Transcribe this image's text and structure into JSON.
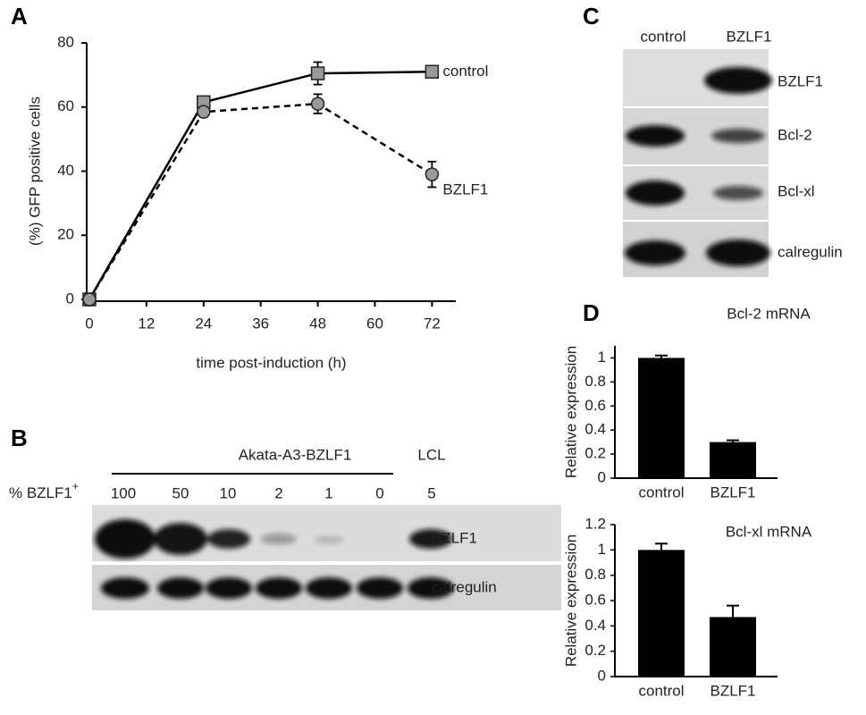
{
  "panel_labels": [
    "A",
    "B",
    "C",
    "D"
  ],
  "blot_b": {
    "group_label": "Akata-A3-BZLF1",
    "lcl_label": "LCL",
    "lane_header": "% BZLF1",
    "lane_header_sup": "+",
    "lanes": [
      "100",
      "50",
      "10",
      "2",
      "1",
      "0",
      "5"
    ],
    "rows": [
      "BZLF1",
      "calregulin"
    ]
  },
  "blot_c": {
    "columns": [
      "control",
      "BZLF1"
    ],
    "rows": [
      "BZLF1",
      "Bcl-2",
      "Bcl-xl",
      "calregulin"
    ]
  },
  "chart_data": [
    {
      "type": "line",
      "xlabel": "time post-induction (h)",
      "ylabel": "(%) GFP positive cells",
      "x": [
        0,
        24,
        48,
        72
      ],
      "xlim": [
        0,
        77
      ],
      "xticks": [
        0,
        12,
        24,
        36,
        48,
        60,
        72
      ],
      "ylim": [
        0,
        80
      ],
      "yticks": [
        0,
        20,
        40,
        60,
        80
      ],
      "series": [
        {
          "name": "control",
          "color": "#000000",
          "marker": "square",
          "marker_color": "#999999",
          "linestyle": "solid",
          "values": [
            0,
            61.5,
            70.5,
            71
          ],
          "errors": [
            0,
            1.5,
            3.5,
            1
          ]
        },
        {
          "name": "BZLF1",
          "color": "#000000",
          "marker": "circle",
          "marker_color": "#999999",
          "linestyle": "dashed",
          "values": [
            0,
            58.5,
            61,
            39
          ],
          "errors": [
            0,
            1,
            3,
            4
          ]
        }
      ]
    },
    {
      "type": "bar",
      "title": "Bcl-2 mRNA",
      "ylabel": "Relative expression",
      "categories": [
        "control",
        "BZLF1"
      ],
      "values": [
        1,
        0.3
      ],
      "errors": [
        0.02,
        0.015
      ],
      "color": "#000000",
      "ylim": [
        0,
        1.1
      ],
      "yticks": [
        0,
        0.2,
        0.4,
        0.6,
        0.8,
        1
      ]
    },
    {
      "type": "bar",
      "title": "Bcl-xl mRNA",
      "ylabel": "Relative expression",
      "categories": [
        "control",
        "BZLF1"
      ],
      "values": [
        1,
        0.47
      ],
      "errors": [
        0.05,
        0.09
      ],
      "color": "#000000",
      "ylim": [
        0,
        1.2
      ],
      "yticks": [
        0,
        0.2,
        0.4,
        0.6,
        0.8,
        1,
        1.2
      ]
    }
  ]
}
